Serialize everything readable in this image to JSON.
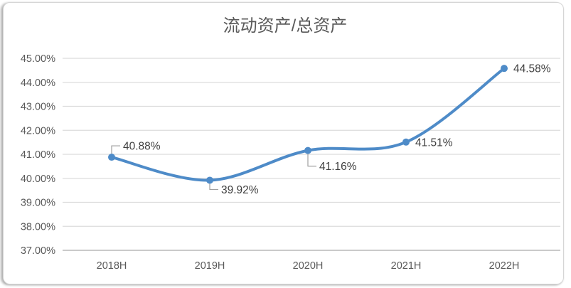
{
  "chart_data": {
    "type": "line",
    "title": "流动资产/总资产",
    "xlabel": "",
    "ylabel": "",
    "categories": [
      "2018H",
      "2019H",
      "2020H",
      "2021H",
      "2022H"
    ],
    "values": [
      40.88,
      39.92,
      41.16,
      41.51,
      44.58
    ],
    "data_labels": [
      "40.88%",
      "39.92%",
      "41.16%",
      "41.51%",
      "44.58%"
    ],
    "y_ticks": [
      "45.00%",
      "44.00%",
      "43.00%",
      "42.00%",
      "41.00%",
      "40.00%",
      "39.00%",
      "38.00%",
      "37.00%"
    ],
    "y_tick_values": [
      45,
      44,
      43,
      42,
      41,
      40,
      39,
      38,
      37
    ],
    "ylim": [
      37,
      45
    ],
    "grid": true,
    "legend": "none",
    "line_smooth": true,
    "colors": {
      "line": "#4e8bc8",
      "marker": "#4e8bc8",
      "title": "#595959",
      "axis_labels": "#595959",
      "data_labels": "#3f3f3f",
      "gridline": "#dcdcdc",
      "axis_line": "#b9b9b9",
      "callout": "#9f9f9f",
      "card_border": "#d6d6d6",
      "background": "#ffffff"
    }
  }
}
